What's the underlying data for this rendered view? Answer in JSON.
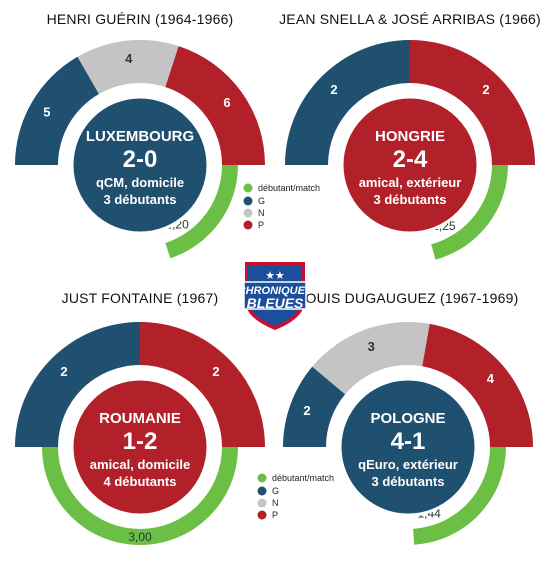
{
  "colors": {
    "win": "#1f5070",
    "draw": "#c4c4c4",
    "loss": "#b22029",
    "debutants": "#6cbf45",
    "logo_blue": "#1b4f9c",
    "logo_red": "#c8102e"
  },
  "logo": {
    "top": "CHRONIQUES",
    "bottom": "BLEUES",
    "stars": "★★"
  },
  "chart_data": [
    {
      "type": "pie",
      "title": "HENRI GUÉRIN (1964-1966)",
      "wins": 5,
      "draws": 4,
      "losses": 6,
      "win_label": "5",
      "draw_label": "4",
      "loss_label": "6",
      "debutants_per_match": 1.2,
      "debutants_label": "1,20",
      "match": {
        "opponent": "LUXEMBOURG",
        "score": "2-0",
        "context": "qCM, domicile",
        "debutants": "3 débutants",
        "result": "win"
      },
      "legend": {
        "debutants": "débutant/match",
        "win": "G",
        "draw": "N",
        "loss": "P"
      }
    },
    {
      "type": "pie",
      "title": "JEAN SNELLA & JOSÉ ARRIBAS (1966)",
      "wins": 2,
      "draws": 0,
      "losses": 2,
      "win_label": "2",
      "draw_label": "",
      "loss_label": "2",
      "debutants_per_match": 1.25,
      "debutants_label": "1,25",
      "match": {
        "opponent": "HONGRIE",
        "score": "2-4",
        "context": "amical, extérieur",
        "debutants": "3 débutants",
        "result": "loss"
      }
    },
    {
      "type": "pie",
      "title": "JUST FONTAINE (1967)",
      "wins": 2,
      "draws": 0,
      "losses": 2,
      "win_label": "2",
      "draw_label": "",
      "loss_label": "2",
      "debutants_per_match": 3.0,
      "debutants_label": "3,00",
      "match": {
        "opponent": "ROUMANIE",
        "score": "1-2",
        "context": "amical, domicile",
        "debutants": "4 débutants",
        "result": "loss"
      }
    },
    {
      "type": "pie",
      "title": "LOUIS DUGAUGUEZ (1967-1969)",
      "wins": 2,
      "draws": 3,
      "losses": 4,
      "win_label": "2",
      "draw_label": "3",
      "loss_label": "4",
      "debutants_per_match": 1.44,
      "debutants_label": "1,44",
      "match": {
        "opponent": "POLOGNE",
        "score": "4-1",
        "context": "qEuro, extérieur",
        "debutants": "3 débutants",
        "result": "win"
      },
      "legend": {
        "debutants": "débutant/match",
        "win": "G",
        "draw": "N",
        "loss": "P"
      }
    }
  ]
}
